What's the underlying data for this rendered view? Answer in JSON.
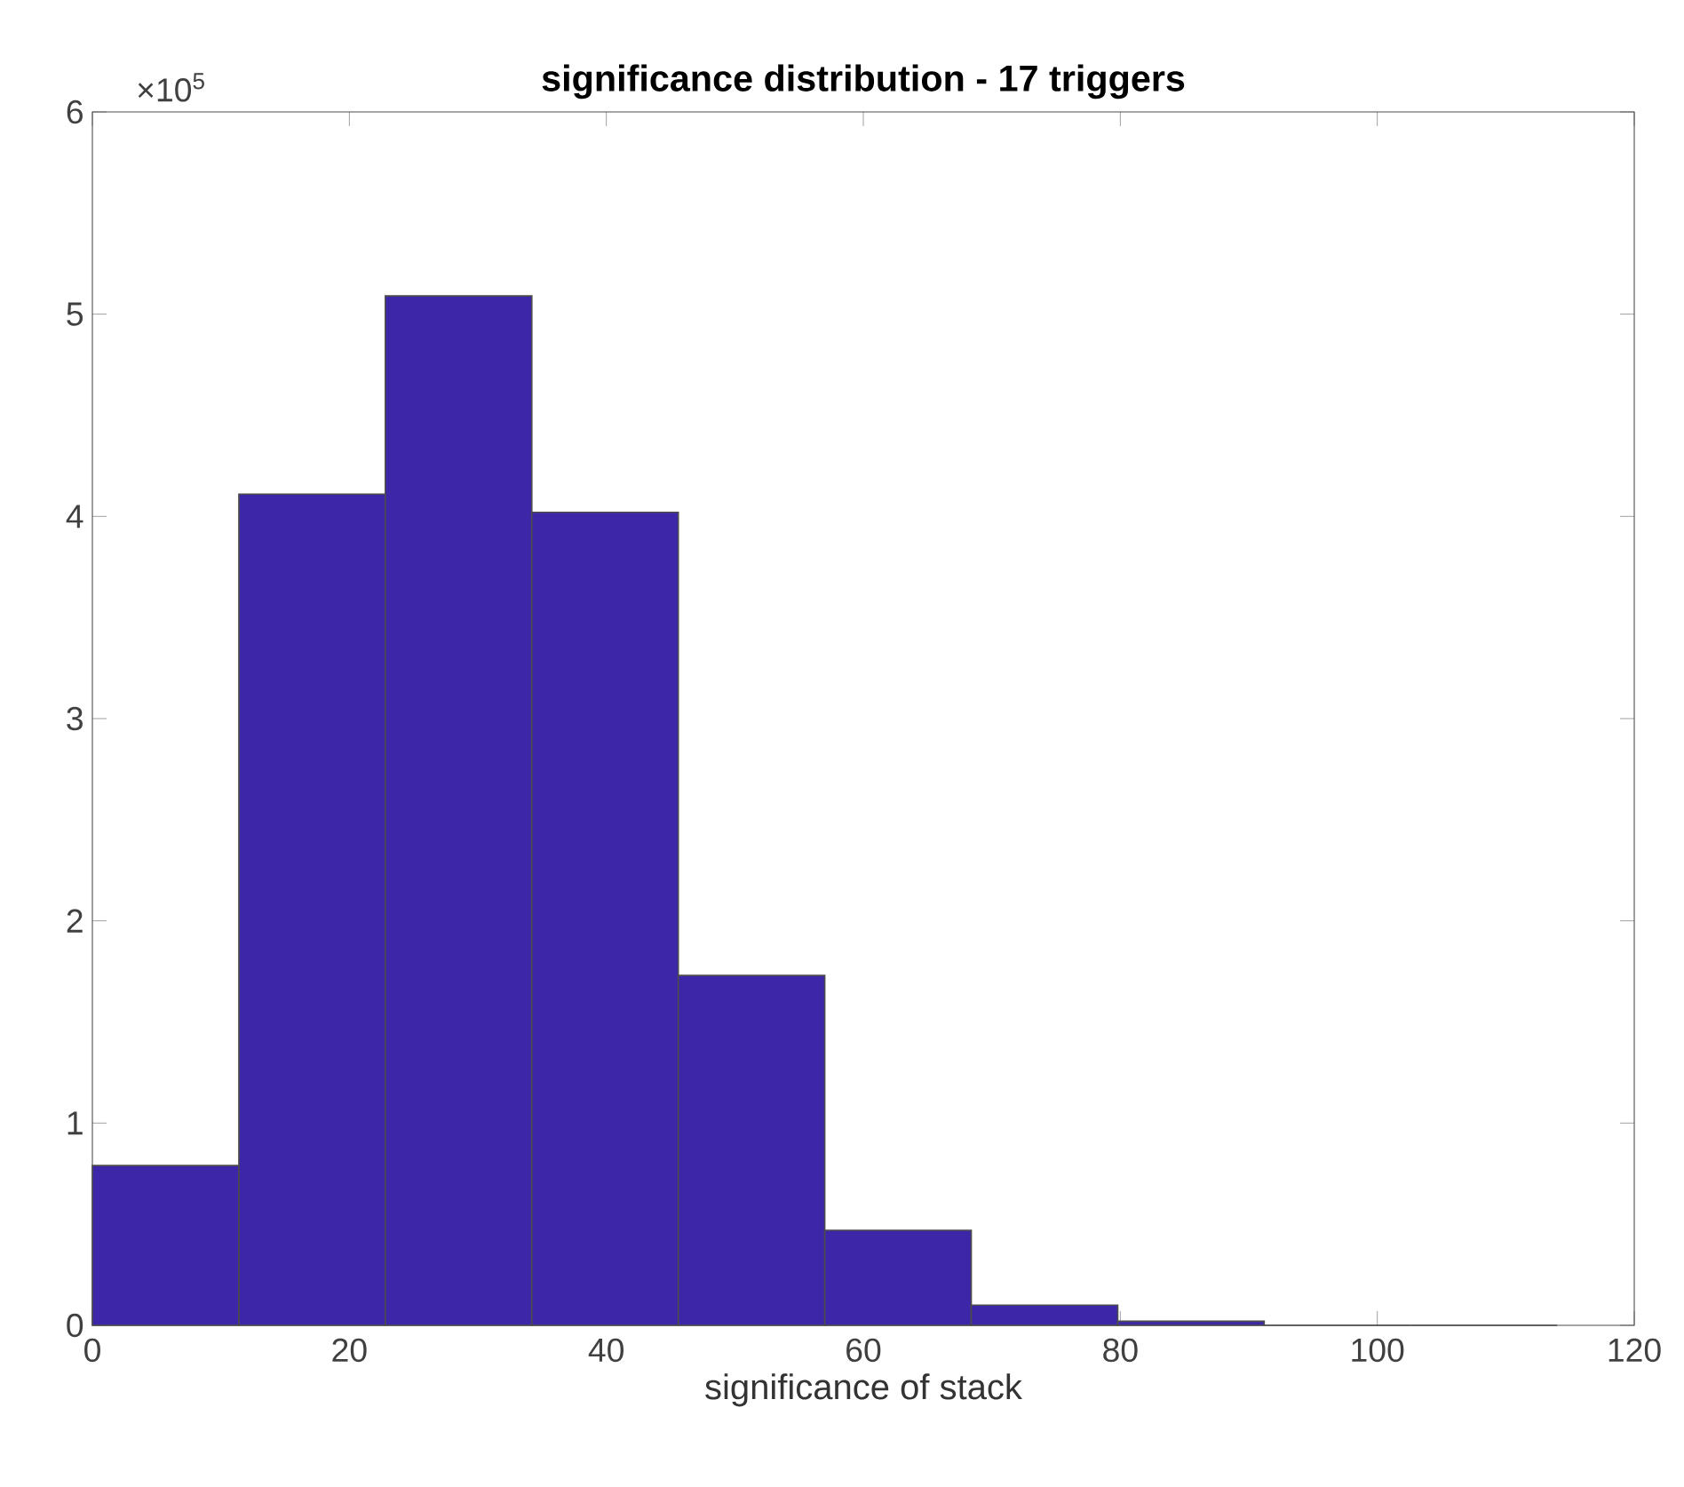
{
  "chart_data": {
    "type": "histogram",
    "title": "significance distribution - 17 triggers",
    "xlabel": "significance of stack",
    "bins": [
      0,
      11.4,
      22.8,
      34.2,
      45.6,
      57.0,
      68.4,
      79.8,
      91.2,
      102.6,
      114.0
    ],
    "values": [
      0.79,
      4.11,
      5.09,
      4.02,
      1.73,
      0.47,
      0.1,
      0.02,
      0,
      0
    ],
    "color": "#3e26a8",
    "xlim": [
      0,
      120
    ],
    "xticks": [
      0,
      20,
      40,
      60,
      80,
      100,
      120
    ],
    "ylim": [
      0,
      6
    ],
    "yticks": [
      0,
      1,
      2,
      3,
      4,
      5,
      6
    ],
    "annotations": [
      "×10$^{5}$"
    ],
    "grid": false
  }
}
